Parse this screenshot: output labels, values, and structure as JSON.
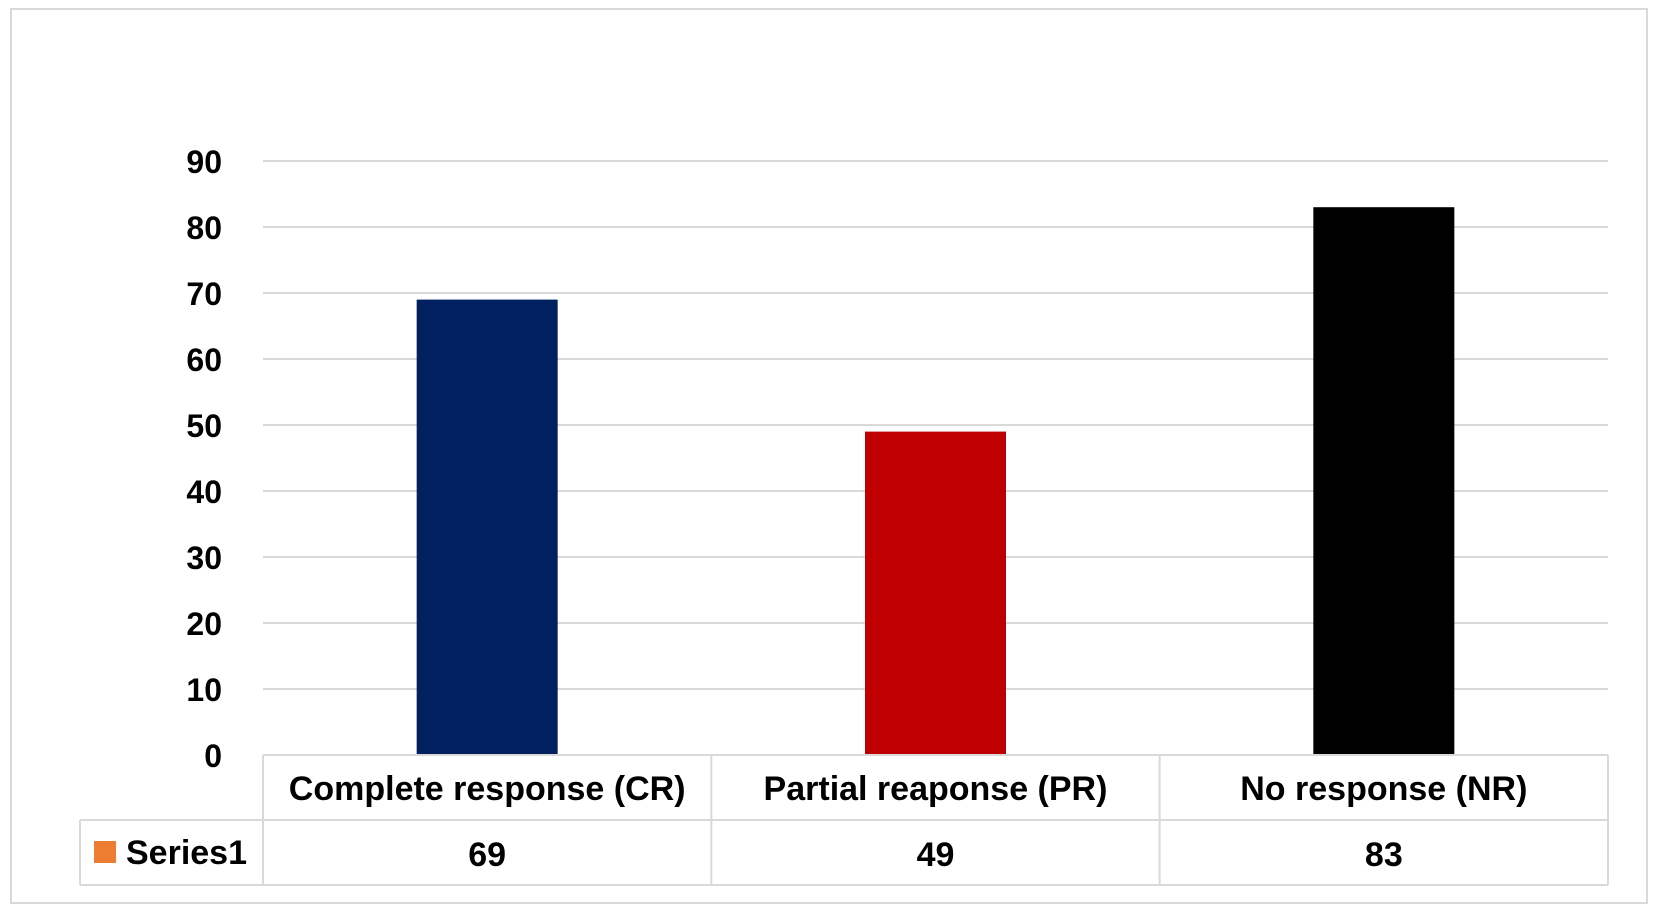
{
  "chart_data": {
    "type": "bar",
    "categories": [
      "Complete response (CR)",
      "Partial reaponse (PR)",
      "No response (NR)"
    ],
    "series": [
      {
        "name": "Series1",
        "values": [
          69,
          49,
          83
        ],
        "legend_color": "#ed7d31"
      }
    ],
    "bar_colors": [
      "#002060",
      "#c00000",
      "#000000"
    ],
    "title": "",
    "xlabel": "",
    "ylabel": "",
    "ylim": [
      0,
      90
    ],
    "yticks": [
      0,
      10,
      20,
      30,
      40,
      50,
      60,
      70,
      80,
      90
    ],
    "grid": true,
    "legend": "data-table"
  }
}
